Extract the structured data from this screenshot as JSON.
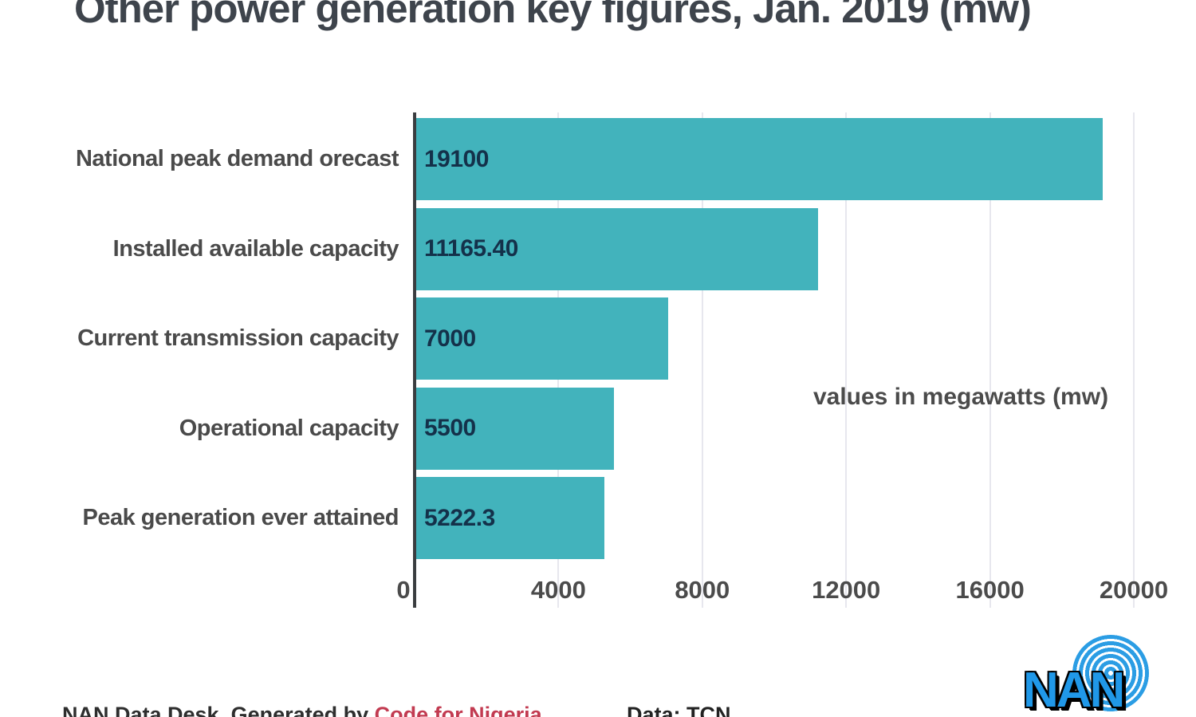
{
  "title": "Other power generation key figures, Jan. 2019 (mw)",
  "footer": {
    "credit_prefix": "NAN Data Desk, Generated by ",
    "credit_link": "Code for Nigeria",
    "source": "Data: TCN"
  },
  "logo": {
    "text": "NAN"
  },
  "colors": {
    "bar": "#42b3bc",
    "bar_value_text": "#14314a",
    "category_text": "#4a4a4a",
    "axis_line": "#3a3d40",
    "gridline": "#e7e7ee",
    "title_text": "#3e444c",
    "credit_link_red": "#c23b51",
    "logo_blue": "#2098e8"
  },
  "chart_data": {
    "type": "bar",
    "orientation": "horizontal",
    "title": "Other power generation key figures, Jan. 2019 (mw)",
    "categories": [
      "National peak demand orecast",
      "Installed available capacity",
      "Current transmission capacity",
      "Operational capacity",
      "Peak generation ever attained"
    ],
    "values": [
      19100,
      11165.4,
      7000,
      5500,
      5222.3
    ],
    "value_labels": [
      "19100",
      "11165.40",
      "7000",
      "5500",
      "5222.3"
    ],
    "xlabel": "",
    "ylabel": "",
    "xlim": [
      0,
      20000
    ],
    "xticks": [
      0,
      4000,
      8000,
      12000,
      16000,
      20000
    ],
    "grid": true,
    "legend": false,
    "annotation": "values in megawatts (mw)"
  }
}
